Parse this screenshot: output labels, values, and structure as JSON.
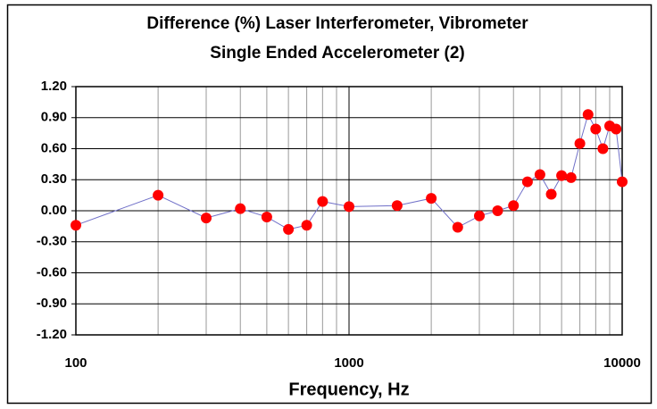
{
  "chart_data": {
    "type": "scatter-line",
    "title": "Difference (%) Laser Interferometer, Vibrometer",
    "subtitle": "Single Ended Accelerometer (2)",
    "xlabel": "Frequency, Hz",
    "xscale": "log",
    "x": [
      100,
      200,
      300,
      400,
      500,
      600,
      700,
      800,
      1000,
      1500,
      2000,
      2500,
      3000,
      3500,
      4000,
      4500,
      5000,
      5500,
      6000,
      6500,
      7000,
      7500,
      8000,
      8500,
      9000,
      9500,
      10000
    ],
    "series": [
      {
        "color": "#ff0000",
        "line_color": "#7070c8",
        "values": [
          -0.14,
          0.15,
          -0.07,
          0.02,
          -0.06,
          -0.18,
          -0.14,
          0.09,
          0.04,
          0.05,
          0.12,
          -0.16,
          -0.05,
          0.0,
          0.05,
          0.28,
          0.35,
          0.16,
          0.34,
          0.32,
          0.65,
          0.93,
          0.79,
          0.6,
          0.82,
          0.79,
          0.28
        ]
      }
    ],
    "xlim": [
      100,
      10000
    ],
    "xticks": [
      100,
      1000,
      10000
    ],
    "xminorticks": [
      200,
      300,
      400,
      500,
      600,
      700,
      800,
      900,
      2000,
      3000,
      4000,
      5000,
      6000,
      7000,
      8000,
      9000
    ],
    "ylim": [
      -1.2,
      1.2
    ],
    "yticks": [
      {
        "value": -1.2,
        "label": "-1.20"
      },
      {
        "value": -0.9,
        "label": "-0.90"
      },
      {
        "value": -0.6,
        "label": "-0.60"
      },
      {
        "value": -0.3,
        "label": "-0.30"
      },
      {
        "value": 0,
        "label": "0.00"
      },
      {
        "value": 0.3,
        "label": "0.30"
      },
      {
        "value": 0.6,
        "label": "0.60"
      },
      {
        "value": 0.9,
        "label": "0.90"
      },
      {
        "value": 1.2,
        "label": "1.20"
      }
    ],
    "grid": true
  }
}
